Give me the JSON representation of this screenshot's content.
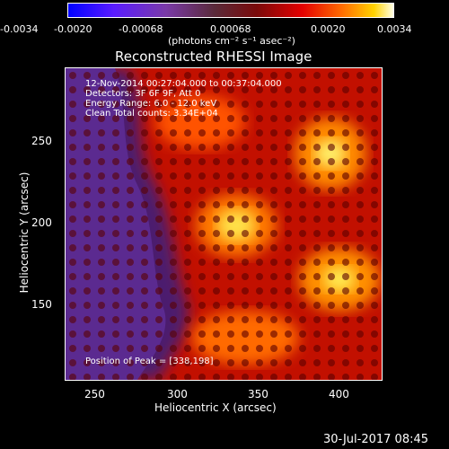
{
  "colorbar": {
    "ticks": [
      "-0.0034",
      "-0.0020",
      "-0.00068",
      "0.00068",
      "0.0020",
      "0.0034"
    ],
    "unit": "(photons cm⁻² s⁻¹ asec⁻²)"
  },
  "image": {
    "title": "Reconstructed RHESSI Image",
    "annotations": {
      "time": "12-Nov-2014 00:27:04.000 to 00:37:04.000",
      "detectors": "Detectors: 3F 6F 9F, Att 0",
      "energy": "Energy Range: 6.0 - 12.0 keV",
      "clean": "Clean    Total counts: 3.34E+04",
      "peak": "Position of Peak = [338,198]"
    },
    "xlabel": "Heliocentric X (arcsec)",
    "ylabel": "Heliocentric Y (arcsec)",
    "xticks": [
      "250",
      "300",
      "350",
      "400"
    ],
    "yticks": [
      "250",
      "200",
      "150"
    ],
    "footer_date": "30-Jul-2017 08:45"
  }
}
